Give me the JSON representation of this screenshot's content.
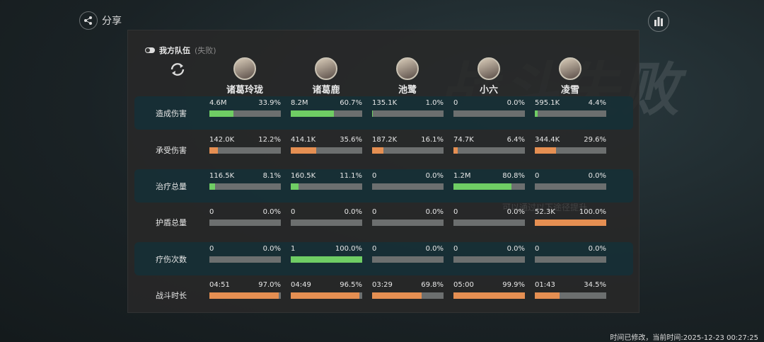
{
  "background_title": "战斗失败",
  "background_hint": "可以通过以下途径提升",
  "header": {
    "share": "分享"
  },
  "team": {
    "title": "我方队伍",
    "status": "(失败)",
    "members": [
      {
        "name": "诸葛玲珑"
      },
      {
        "name": "诸葛鹿"
      },
      {
        "name": "池鹭"
      },
      {
        "name": "小六"
      },
      {
        "name": "凌雪"
      }
    ]
  },
  "stats": {
    "rows": [
      {
        "label": "造成伤害",
        "cells": [
          {
            "value": "4.6M",
            "pct": {
              "value": 33.9,
              "label": "33.9%"
            }
          },
          {
            "value": "8.2M",
            "pct": {
              "value": 60.7,
              "label": "60.7%"
            }
          },
          {
            "value": "135.1K",
            "pct": {
              "value": 1.0,
              "label": "1.0%"
            }
          },
          {
            "value": "0",
            "pct": {
              "value": 0,
              "label": "0.0%"
            }
          },
          {
            "value": "595.1K",
            "pct": {
              "value": 4.4,
              "label": "4.4%"
            }
          }
        ]
      },
      {
        "label": "承受伤害",
        "cells": [
          {
            "value": "142.0K",
            "pct": {
              "value": 12.2,
              "label": "12.2%"
            }
          },
          {
            "value": "414.1K",
            "pct": {
              "value": 35.6,
              "label": "35.6%"
            }
          },
          {
            "value": "187.2K",
            "pct": {
              "value": 16.1,
              "label": "16.1%"
            }
          },
          {
            "value": "74.7K",
            "pct": {
              "value": 6.4,
              "label": "6.4%"
            }
          },
          {
            "value": "344.4K",
            "pct": {
              "value": 29.6,
              "label": "29.6%"
            }
          }
        ]
      },
      {
        "label": "治疗总量",
        "cells": [
          {
            "value": "116.5K",
            "pct": {
              "value": 8.1,
              "label": "8.1%"
            }
          },
          {
            "value": "160.5K",
            "pct": {
              "value": 11.1,
              "label": "11.1%"
            }
          },
          {
            "value": "0",
            "pct": {
              "value": 0,
              "label": "0.0%"
            }
          },
          {
            "value": "1.2M",
            "pct": {
              "value": 80.8,
              "label": "80.8%"
            }
          },
          {
            "value": "0",
            "pct": {
              "value": 0,
              "label": "0.0%"
            }
          }
        ]
      },
      {
        "label": "护盾总量",
        "cells": [
          {
            "value": "0",
            "pct": {
              "value": 0,
              "label": "0.0%"
            }
          },
          {
            "value": "0",
            "pct": {
              "value": 0,
              "label": "0.0%"
            }
          },
          {
            "value": "0",
            "pct": {
              "value": 0,
              "label": "0.0%"
            }
          },
          {
            "value": "0",
            "pct": {
              "value": 0,
              "label": "0.0%"
            }
          },
          {
            "value": "52.3K",
            "pct": {
              "value": 100.0,
              "label": "100.0%"
            }
          }
        ]
      },
      {
        "label": "疗伤次数",
        "cells": [
          {
            "value": "0",
            "pct": {
              "value": 0,
              "label": "0.0%"
            }
          },
          {
            "value": "1",
            "pct": {
              "value": 100.0,
              "label": "100.0%"
            }
          },
          {
            "value": "0",
            "pct": {
              "value": 0,
              "label": "0.0%"
            }
          },
          {
            "value": "0",
            "pct": {
              "value": 0,
              "label": "0.0%"
            }
          },
          {
            "value": "0",
            "pct": {
              "value": 0,
              "label": "0.0%"
            }
          }
        ]
      },
      {
        "label": "战斗时长",
        "cells": [
          {
            "value": "04:51",
            "pct": {
              "value": 97.0,
              "label": "97.0%"
            }
          },
          {
            "value": "04:49",
            "pct": {
              "value": 96.5,
              "label": "96.5%"
            }
          },
          {
            "value": "03:29",
            "pct": {
              "value": 69.8,
              "label": "69.8%"
            }
          },
          {
            "value": "05:00",
            "pct": {
              "value": 99.9,
              "label": "99.9%"
            }
          },
          {
            "value": "01:43",
            "pct": {
              "value": 34.5,
              "label": "34.5%"
            }
          }
        ]
      }
    ]
  },
  "footer": "时间已修改，当前时间:2025-12-23 00:27:25"
}
